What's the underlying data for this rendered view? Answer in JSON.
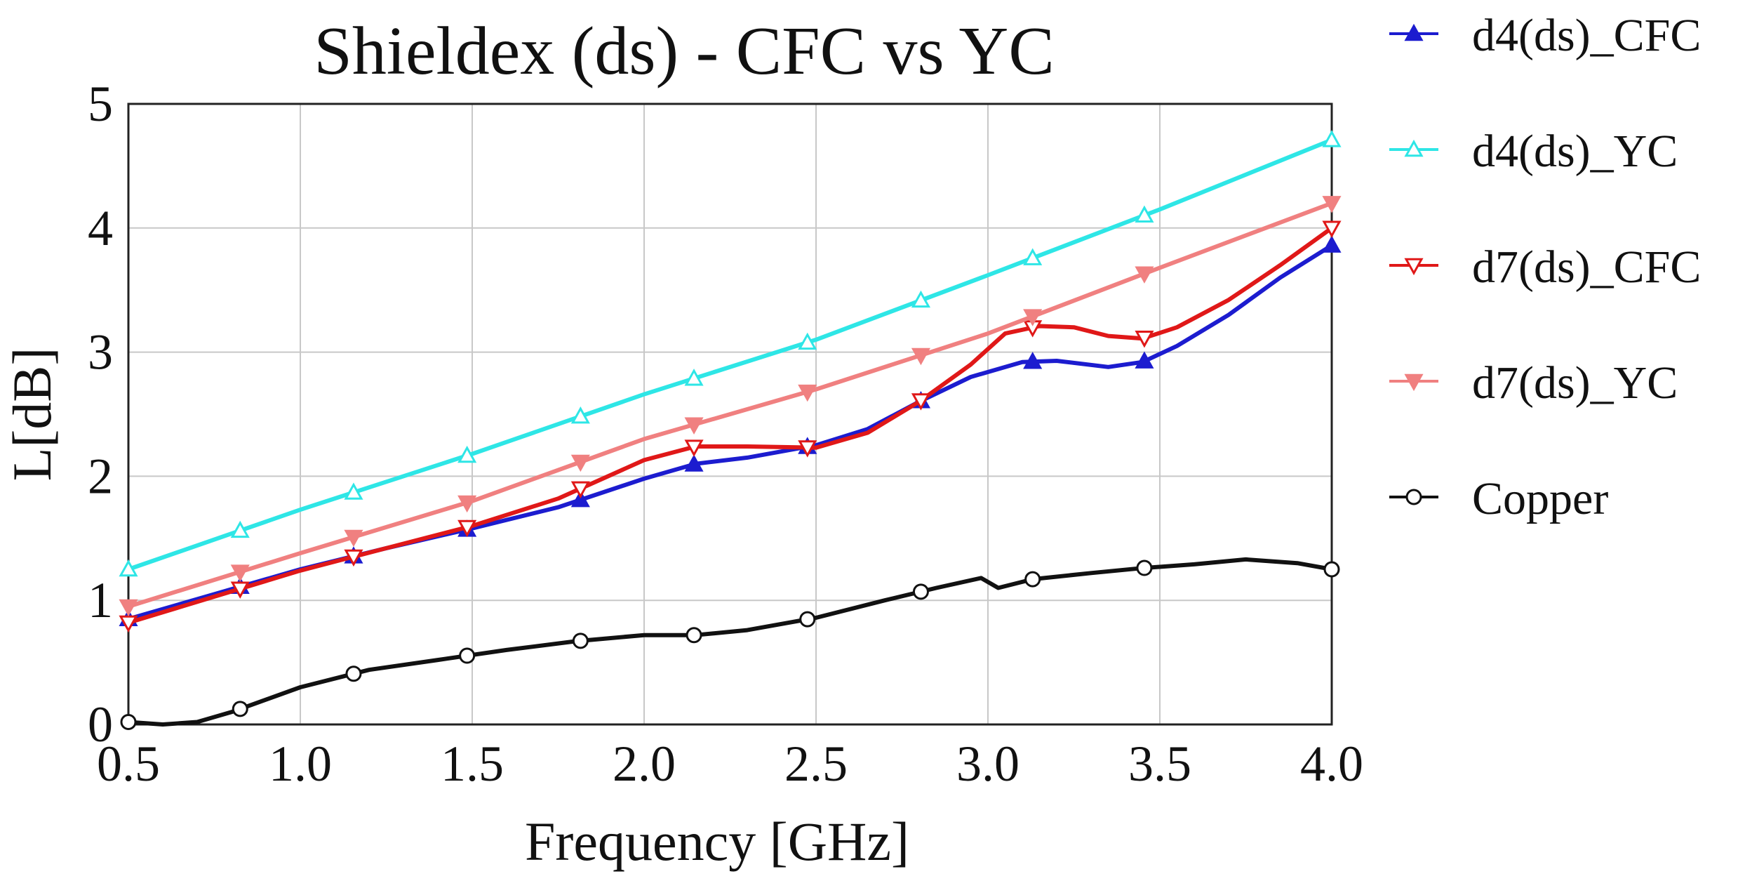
{
  "chart_data": {
    "type": "line",
    "title": "Shieldex (ds) - CFC vs YC",
    "xlabel": "Frequency [GHz]",
    "ylabel": "L[dB]",
    "xlim": [
      0.5,
      4.0
    ],
    "ylim": [
      0,
      5
    ],
    "grid": true,
    "legend_position": "right",
    "x_ticks": [
      0.5,
      1.0,
      1.5,
      2.0,
      2.5,
      3.0,
      3.5,
      4.0
    ],
    "x_tick_labels": [
      "0.5",
      "1.0",
      "1.5",
      "2.0",
      "2.5",
      "3.0",
      "3.5",
      "4.0"
    ],
    "y_ticks": [
      0,
      1,
      2,
      3,
      4,
      5
    ],
    "y_tick_labels": [
      "0",
      "1",
      "2",
      "3",
      "4",
      "5"
    ],
    "series": [
      {
        "name": "d4(ds)_CFC",
        "color": "#1c1ccf",
        "marker": "triangle-up-filled",
        "x": [
          0.5,
          0.75,
          1.0,
          1.25,
          1.5,
          1.75,
          2.0,
          2.15,
          2.3,
          2.5,
          2.65,
          2.8,
          2.95,
          3.1,
          3.2,
          3.35,
          3.45,
          3.55,
          3.7,
          3.85,
          4.0
        ],
        "y": [
          0.85,
          1.05,
          1.25,
          1.42,
          1.58,
          1.75,
          1.98,
          2.1,
          2.15,
          2.25,
          2.38,
          2.6,
          2.8,
          2.92,
          2.93,
          2.88,
          2.92,
          3.05,
          3.3,
          3.6,
          3.86
        ]
      },
      {
        "name": "d4(ds)_YC",
        "color": "#2ee6e6",
        "marker": "triangle-up-open",
        "x": [
          0.5,
          1.0,
          1.5,
          2.0,
          2.5,
          3.0,
          3.5,
          4.0
        ],
        "y": [
          1.25,
          1.73,
          2.18,
          2.66,
          3.1,
          3.62,
          4.15,
          4.71
        ]
      },
      {
        "name": "d7(ds)_CFC",
        "color": "#e01818",
        "marker": "triangle-down-open",
        "x": [
          0.5,
          0.75,
          1.0,
          1.25,
          1.5,
          1.75,
          2.0,
          2.15,
          2.3,
          2.5,
          2.65,
          2.8,
          2.95,
          3.05,
          3.15,
          3.25,
          3.35,
          3.45,
          3.55,
          3.7,
          3.85,
          4.0
        ],
        "y": [
          0.82,
          1.03,
          1.24,
          1.42,
          1.6,
          1.82,
          2.13,
          2.24,
          2.24,
          2.23,
          2.35,
          2.6,
          2.9,
          3.15,
          3.21,
          3.2,
          3.13,
          3.11,
          3.2,
          3.42,
          3.7,
          4.0
        ]
      },
      {
        "name": "d7(ds)_YC",
        "color": "#f08080",
        "marker": "triangle-down-filled",
        "x": [
          0.5,
          1.0,
          1.5,
          2.0,
          2.5,
          3.0,
          3.5,
          4.0
        ],
        "y": [
          0.95,
          1.38,
          1.8,
          2.3,
          2.7,
          3.15,
          3.68,
          4.2
        ]
      },
      {
        "name": "Copper",
        "color": "#111111",
        "marker": "circle-open",
        "x": [
          0.5,
          0.6,
          0.7,
          0.8,
          1.0,
          1.2,
          1.4,
          1.6,
          1.8,
          2.0,
          2.15,
          2.3,
          2.5,
          2.7,
          2.85,
          2.98,
          3.03,
          3.13,
          3.3,
          3.45,
          3.6,
          3.75,
          3.9,
          4.0
        ],
        "y": [
          0.02,
          0.0,
          0.02,
          0.1,
          0.3,
          0.44,
          0.52,
          0.6,
          0.67,
          0.72,
          0.72,
          0.76,
          0.86,
          1.0,
          1.1,
          1.18,
          1.1,
          1.17,
          1.22,
          1.26,
          1.29,
          1.33,
          1.3,
          1.25
        ]
      }
    ]
  }
}
